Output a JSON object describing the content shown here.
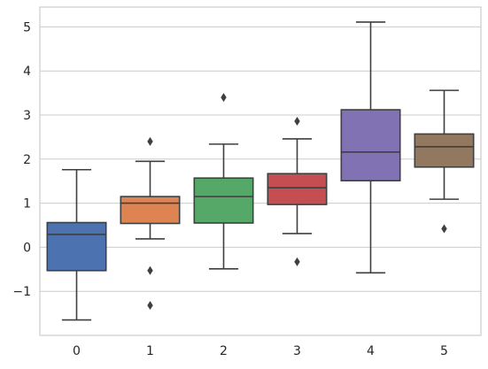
{
  "chart_data": {
    "type": "box",
    "title": "",
    "xlabel": "",
    "ylabel": "",
    "ylim": [
      -2.0,
      5.45
    ],
    "grid": "horizontal",
    "y_ticks": [
      -1,
      0,
      1,
      2,
      3,
      4,
      5
    ],
    "y_tick_labels": [
      "−1",
      "0",
      "1",
      "2",
      "3",
      "4",
      "5"
    ],
    "categories": [
      "0",
      "1",
      "2",
      "3",
      "4",
      "5"
    ],
    "boxes": [
      {
        "category": "0",
        "whisker_low": -1.65,
        "q1": -0.53,
        "median": 0.29,
        "q3": 0.56,
        "whisker_high": 1.76,
        "outliers": [],
        "color": "#4c72b0"
      },
      {
        "category": "1",
        "whisker_low": 0.19,
        "q1": 0.54,
        "median": 1.0,
        "q3": 1.15,
        "whisker_high": 1.95,
        "outliers": [
          2.4,
          -0.53,
          -1.32
        ],
        "color": "#dd8452"
      },
      {
        "category": "2",
        "whisker_low": -0.49,
        "q1": 0.55,
        "median": 1.15,
        "q3": 1.57,
        "whisker_high": 2.34,
        "outliers": [
          3.4
        ],
        "color": "#55a868"
      },
      {
        "category": "3",
        "whisker_low": 0.31,
        "q1": 0.97,
        "median": 1.35,
        "q3": 1.67,
        "whisker_high": 2.46,
        "outliers": [
          2.86,
          -0.33
        ],
        "color": "#c44e52"
      },
      {
        "category": "4",
        "whisker_low": -0.58,
        "q1": 1.51,
        "median": 2.16,
        "q3": 3.12,
        "whisker_high": 5.11,
        "outliers": [],
        "color": "#8172b3"
      },
      {
        "category": "5",
        "whisker_low": 1.09,
        "q1": 1.82,
        "median": 2.28,
        "q3": 2.57,
        "whisker_high": 3.56,
        "outliers": [
          0.42
        ],
        "color": "#937860"
      }
    ]
  },
  "colors": {
    "background": "#ffffff",
    "grid": "#cccccc",
    "spine": "#cccccc",
    "line": "#3f3f3f",
    "text": "#262626"
  }
}
